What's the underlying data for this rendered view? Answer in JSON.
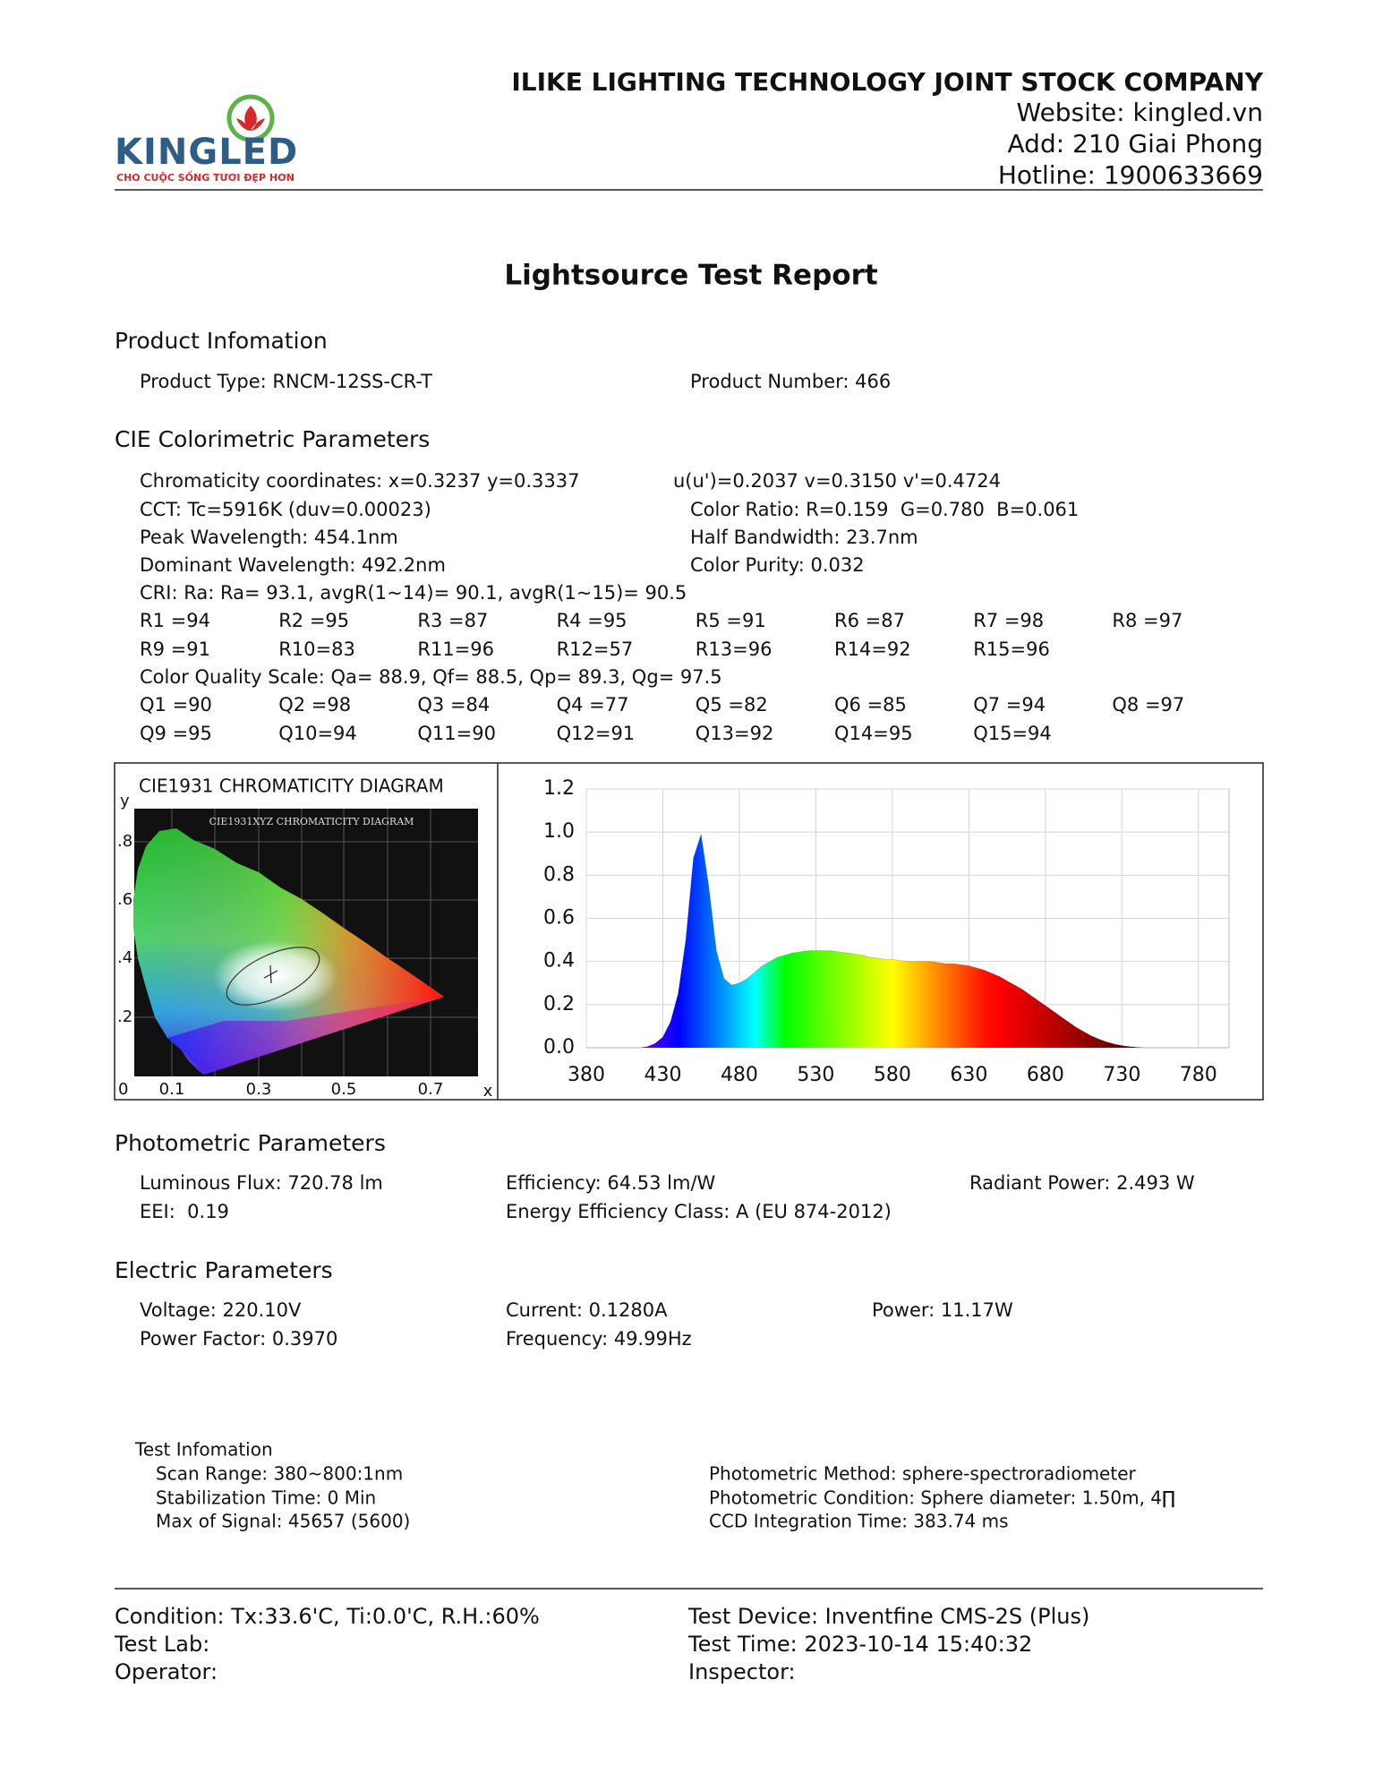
{
  "header": {
    "brand": "KINGLED",
    "slogan": "CHO CUỘC SỐNG TƯƠI ĐẸP HƠN",
    "company": "ILIKE LIGHTING TECHNOLOGY JOINT STOCK COMPANY",
    "website": "Website: kingled.vn",
    "address": "Add: 210 Giai Phong",
    "hotline": "Hotline: 1900633669"
  },
  "title": "Lightsource Test Report",
  "product": {
    "heading": "Product Infomation",
    "type": "Product Type: RNCM-12SS-CR-T",
    "number": "Product Number: 466"
  },
  "cie": {
    "heading": "CIE Colorimetric Parameters",
    "chromaticity": "Chromaticity coordinates: x=0.3237 y=0.3337",
    "uv": "u(u')=0.2037 v=0.3150 v'=0.4724",
    "cct": "CCT: Tc=5916K (duv=0.00023)",
    "color_ratio": "Color Ratio: R=0.159  G=0.780  B=0.061",
    "peak": "Peak Wavelength: 454.1nm",
    "half_bandwidth": "Half Bandwidth: 23.7nm",
    "dominant": "Dominant Wavelength: 492.2nm",
    "purity": "Color Purity: 0.032",
    "cri": "CRI: Ra: Ra= 93.1, avgR(1~14)= 90.1, avgR(1~15)= 90.5",
    "r_rows": [
      [
        "R1 =94",
        "R2 =95",
        "R3 =87",
        "R4 =95",
        "R5 =91",
        "R6 =87",
        "R7 =98",
        "R8 =97"
      ],
      [
        "R9 =91",
        "R10=83",
        "R11=96",
        "R12=57",
        "R13=96",
        "R14=92",
        "R15=96"
      ]
    ],
    "cqs": "Color Quality Scale: Qa= 88.9, Qf= 88.5, Qp= 89.3, Qg= 97.5",
    "q_rows": [
      [
        "Q1 =90",
        "Q2 =98",
        "Q3 =84",
        "Q4 =77",
        "Q5 =82",
        "Q6 =85",
        "Q7 =94",
        "Q8 =97"
      ],
      [
        "Q9 =95",
        "Q10=94",
        "Q11=90",
        "Q12=91",
        "Q13=92",
        "Q14=95",
        "Q15=94"
      ]
    ]
  },
  "cie_diagram": {
    "title": "CIE1931 CHROMATICITY DIAGRAM",
    "inner_title": "CIE1931XYZ CHROMATICITY DIAGRAM",
    "y_label": "y",
    "y_ticks": [
      ".8",
      ".6",
      ".4",
      ".2"
    ],
    "origin": "0",
    "x_ticks": [
      "0.1",
      "0.3",
      "0.5",
      "0.7"
    ],
    "x_label": "x"
  },
  "spectrum": {
    "type": "area",
    "xlim": [
      380,
      800
    ],
    "ylim": [
      0,
      1.2
    ],
    "xticks": [
      380,
      430,
      480,
      530,
      580,
      630,
      680,
      730,
      780
    ],
    "yticks": [
      {
        "value": 0,
        "label": "0.0"
      },
      0.2,
      0.4,
      0.6,
      0.8,
      {
        "value": 1,
        "label": "1.0"
      },
      1.2
    ],
    "grid": true,
    "x": [
      380,
      385,
      390,
      395,
      400,
      405,
      410,
      415,
      420,
      425,
      430,
      435,
      440,
      445,
      450,
      455,
      460,
      465,
      470,
      475,
      480,
      485,
      490,
      495,
      500,
      505,
      510,
      515,
      520,
      525,
      530,
      535,
      540,
      545,
      550,
      555,
      560,
      565,
      570,
      575,
      580,
      585,
      590,
      595,
      600,
      605,
      610,
      615,
      620,
      625,
      630,
      635,
      640,
      645,
      650,
      655,
      660,
      665,
      670,
      675,
      680,
      685,
      690,
      695,
      700,
      705,
      710,
      715,
      720,
      725,
      730,
      735,
      740,
      745,
      750,
      755,
      760,
      765,
      770,
      775,
      780,
      785,
      790,
      795,
      800
    ],
    "values": [
      0,
      0,
      0,
      0,
      0,
      0,
      0,
      0,
      0.005,
      0.02,
      0.05,
      0.12,
      0.25,
      0.5,
      0.88,
      0.99,
      0.75,
      0.45,
      0.32,
      0.29,
      0.3,
      0.32,
      0.35,
      0.38,
      0.4,
      0.42,
      0.43,
      0.44,
      0.445,
      0.45,
      0.45,
      0.45,
      0.45,
      0.445,
      0.44,
      0.435,
      0.43,
      0.42,
      0.415,
      0.41,
      0.41,
      0.405,
      0.4,
      0.4,
      0.4,
      0.4,
      0.395,
      0.39,
      0.39,
      0.385,
      0.38,
      0.37,
      0.36,
      0.345,
      0.33,
      0.31,
      0.29,
      0.27,
      0.245,
      0.22,
      0.195,
      0.17,
      0.145,
      0.12,
      0.095,
      0.075,
      0.055,
      0.04,
      0.027,
      0.017,
      0.01,
      0.005,
      0.002,
      0,
      0,
      0,
      0,
      0,
      0,
      0,
      0,
      0,
      0,
      0,
      0
    ]
  },
  "photometric": {
    "heading": "Photometric Parameters",
    "flux": "Luminous Flux: 720.78 lm",
    "efficiency": "Efficiency: 64.53 lm/W",
    "radiant": "Radiant Power: 2.493 W",
    "eei": "EEI:  0.19",
    "energy_class": "Energy Efficiency Class: A (EU 874-2012)"
  },
  "electric": {
    "heading": "Electric Parameters",
    "voltage": "Voltage: 220.10V",
    "current": "Current: 0.1280A",
    "power": "Power: 11.17W",
    "power_factor": "Power Factor: 0.3970",
    "frequency": "Frequency: 49.99Hz"
  },
  "test_info": {
    "heading": "Test Infomation",
    "scan_range": "Scan Range: 380~800:1nm",
    "stabilization": "Stabilization Time: 0 Min",
    "max_signal": "Max of Signal: 45657 (5600)",
    "method": "Photometric Method: sphere-spectroradiometer",
    "condition": "Photometric Condition: Sphere diameter: 1.50m, 4∏",
    "ccd": "CCD Integration Time: 383.74 ms"
  },
  "footer": {
    "condition": "Condition: Tx:33.6'C, Ti:0.0'C, R.H.:60%",
    "device": "Test Device: Inventfine CMS-2S (Plus)",
    "lab": "Test Lab:",
    "time": "Test Time: 2023-10-14 15:40:32",
    "operator": "Operator:",
    "inspector": "Inspector:"
  }
}
